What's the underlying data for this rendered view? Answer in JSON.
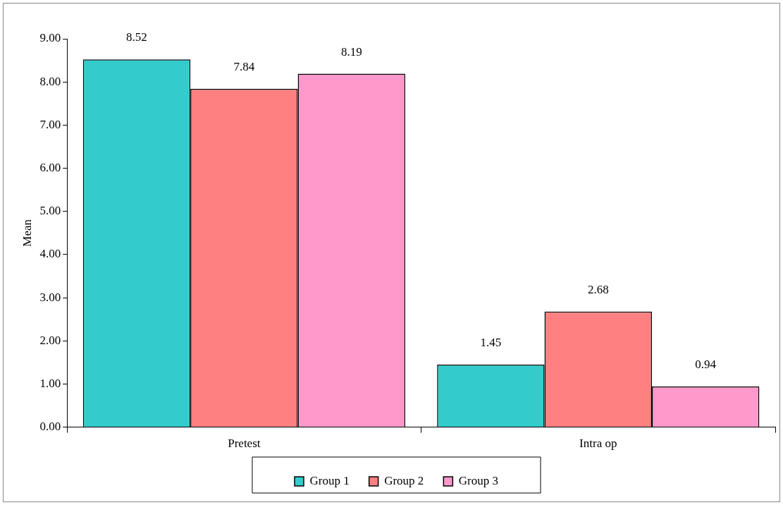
{
  "chart_data": {
    "type": "bar",
    "ylabel": "Mean",
    "categories": [
      "Pretest",
      "Intra op"
    ],
    "series": [
      {
        "name": "Group 1",
        "color": "#33cccc",
        "values": [
          8.52,
          1.45
        ]
      },
      {
        "name": "Group 2",
        "color": "#ff8080",
        "values": [
          7.84,
          2.68
        ]
      },
      {
        "name": "Group 3",
        "color": "#ff99cc",
        "values": [
          8.19,
          0.94
        ]
      }
    ],
    "ylim": [
      0,
      9
    ],
    "yticks": [
      {
        "value": 0,
        "label": "0.00"
      },
      {
        "value": 1,
        "label": "1.00"
      },
      {
        "value": 2,
        "label": "2.00"
      },
      {
        "value": 3,
        "label": "3.00"
      },
      {
        "value": 4,
        "label": "4.00"
      },
      {
        "value": 5,
        "label": "5.00"
      },
      {
        "value": 6,
        "label": "6.00"
      },
      {
        "value": 7,
        "label": "7.00"
      },
      {
        "value": 8,
        "label": "8.00"
      },
      {
        "value": 9,
        "label": "9.00"
      }
    ],
    "grid": false,
    "legend": "bottom",
    "data_labels": true
  }
}
